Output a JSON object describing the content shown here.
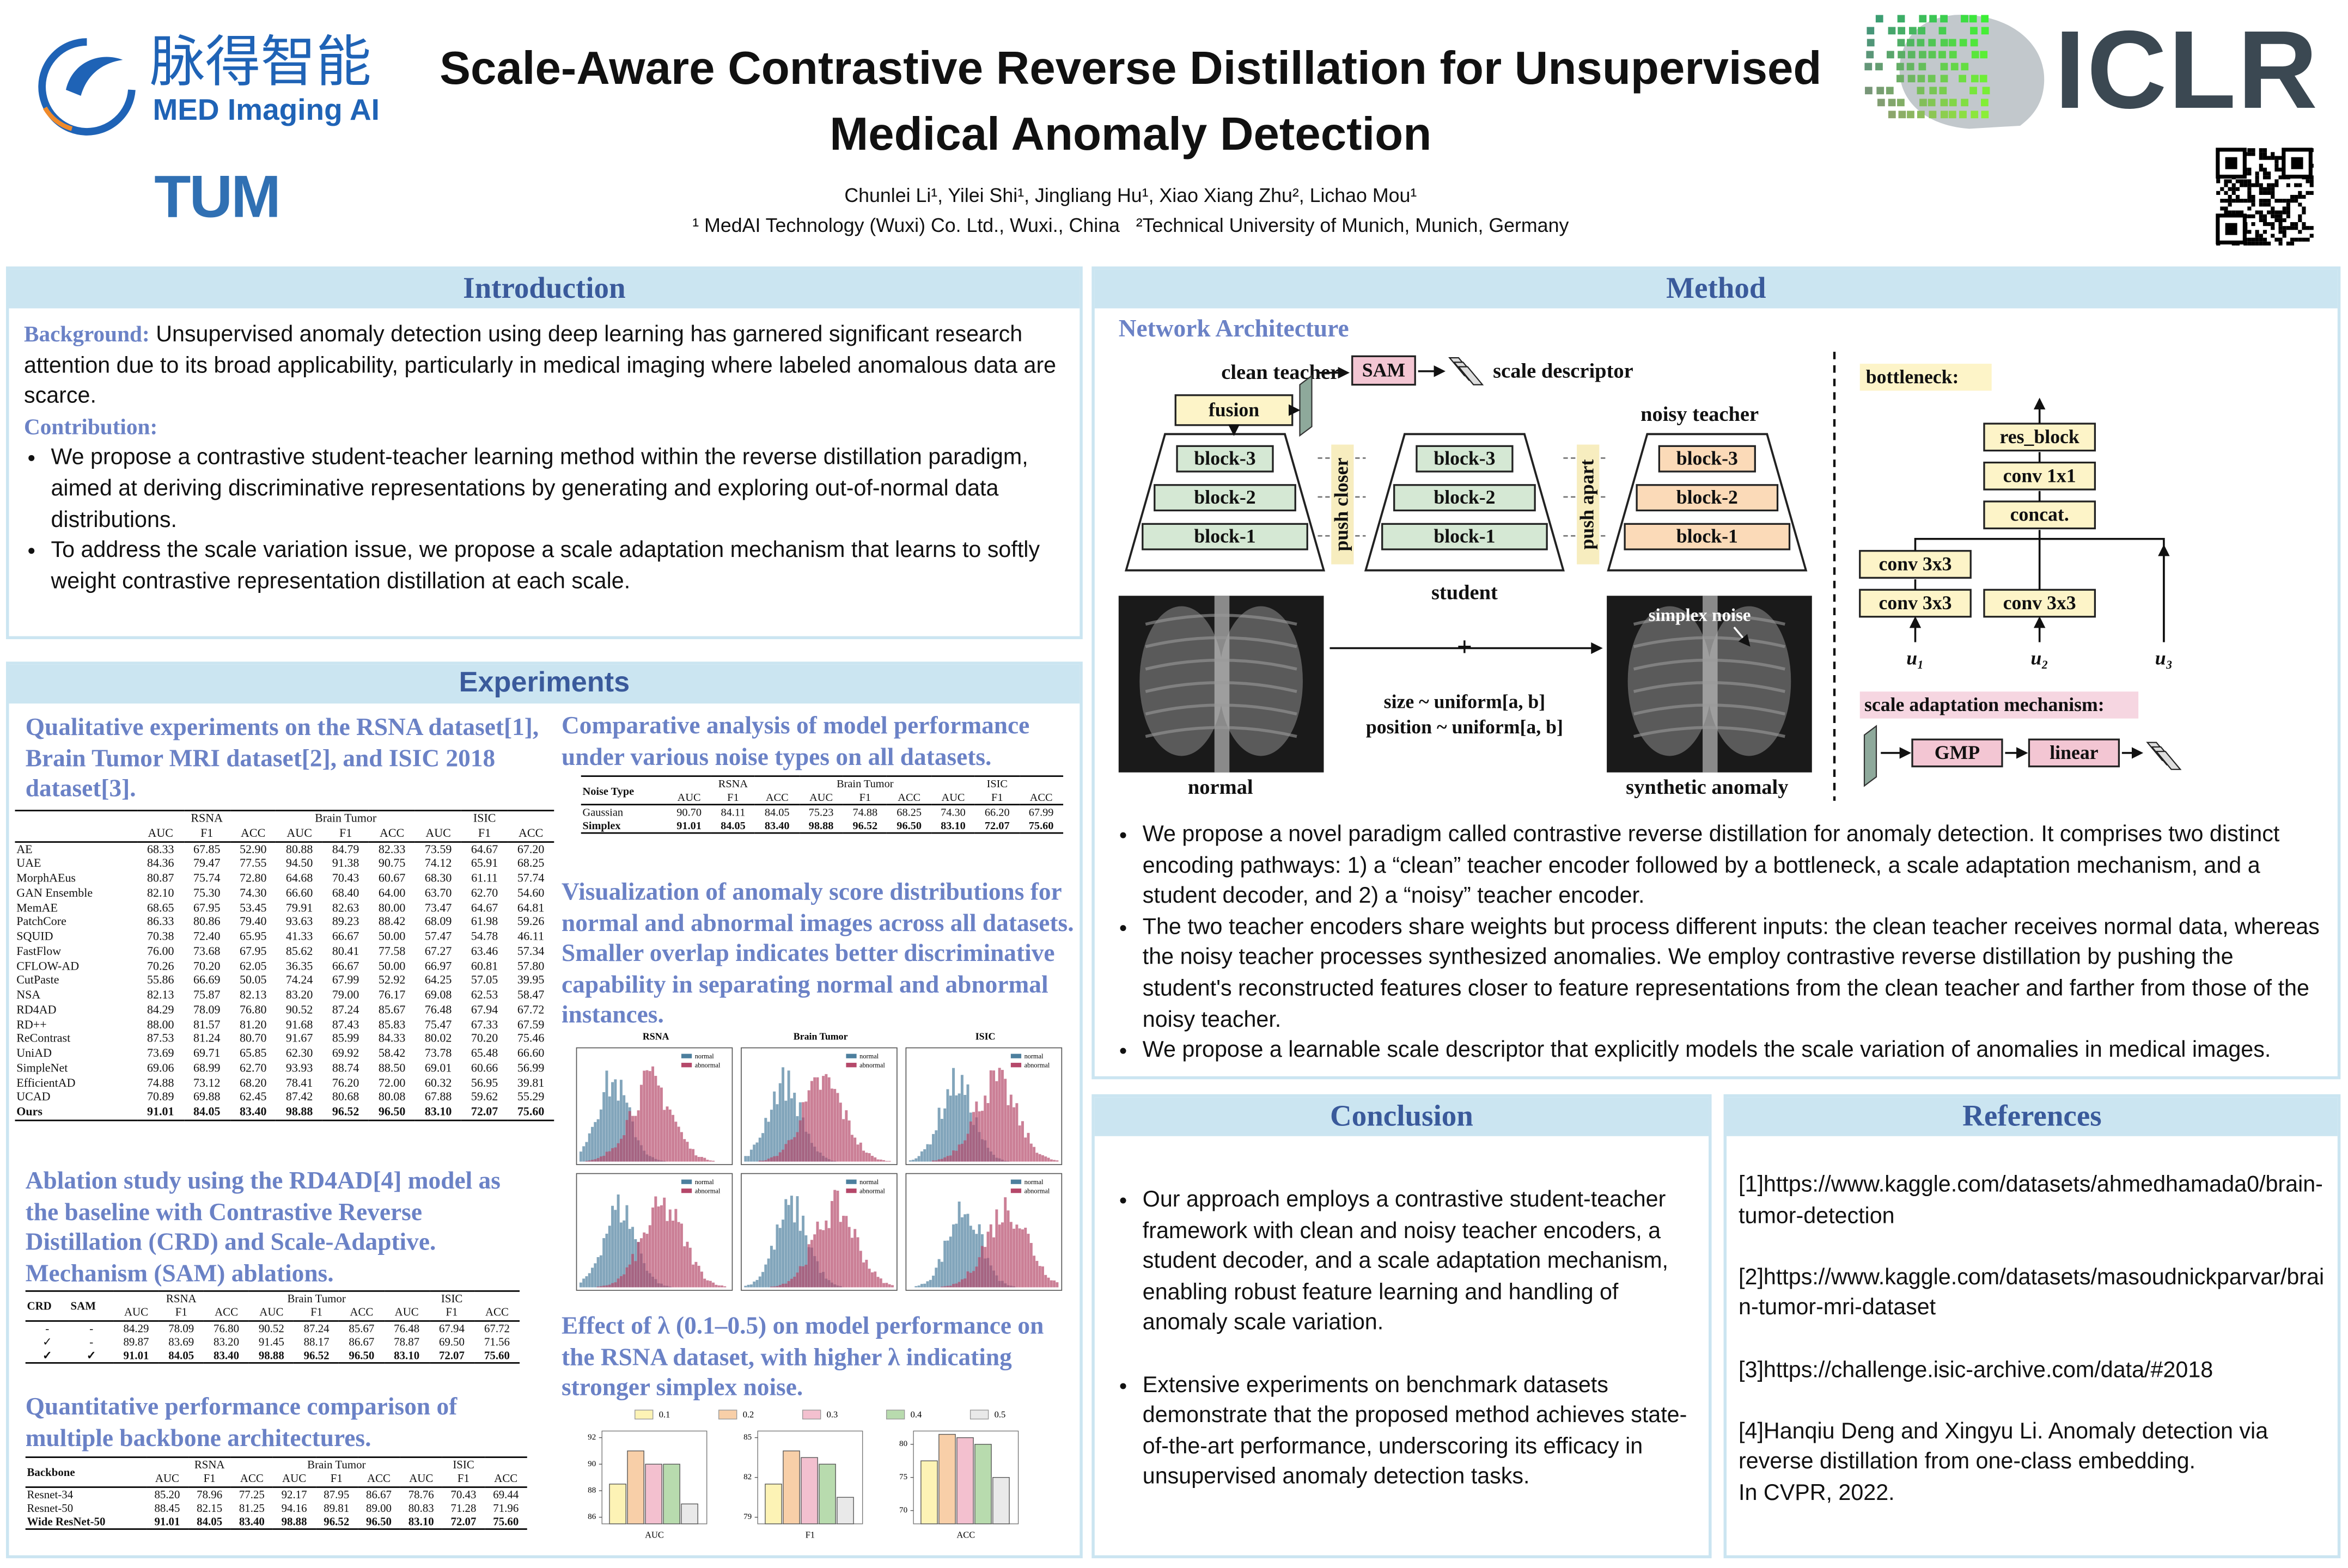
{
  "header": {
    "logo_cn": "脉得智能",
    "logo_en": "MED Imaging AI",
    "logo_tum": "TUM",
    "logo_iclr": "ICLR",
    "title_lines": [
      "Scale-Aware Contrastive Reverse Distillation for Unsupervised",
      "Medical Anomaly Detection"
    ],
    "authors": "Chunlei Li¹, Yilei Shi¹, Jingliang Hu¹, Xiao Xiang Zhu², Lichao Mou¹",
    "affiliations": [
      "¹ MedAI Technology (Wuxi) Co. Ltd., Wuxi., China",
      "²Technical University of Munich, Munich, Germany"
    ]
  },
  "introduction": {
    "title": "Introduction",
    "background_label": "Background:",
    "background_text": "Unsupervised anomaly detection using deep learning has garnered significant research attention due to its broad applicability, particularly in medical imaging where labeled anomalous data are scarce.",
    "contribution_label": "Contribution:",
    "bullets": [
      "We propose a contrastive student-teacher learning method within the reverse distillation paradigm, aimed at deriving discriminative representations by generating and exploring out-of-normal data distributions.",
      "To address the scale variation issue, we propose a scale adaptation mechanism that learns to softly weight contrastive representation distillation at each scale."
    ]
  },
  "method": {
    "title": "Method",
    "subtitle": "Network Architecture",
    "diagram": {
      "clean_teacher": "clean teacher",
      "fusion": "fusion",
      "sam": "SAM",
      "scale_descriptor": "scale descriptor",
      "noisy_teacher": "noisy teacher",
      "student": "student",
      "push_closer": "push closer",
      "push_apart": "push apart",
      "teacher_blocks": [
        "block-3",
        "block-2",
        "block-1"
      ],
      "student_blocks": [
        "block-3",
        "block-2",
        "block-1"
      ],
      "noisy_blocks": [
        "block-3",
        "block-2",
        "block-1"
      ],
      "normal": "normal",
      "synthetic_anomaly": "synthetic anomaly",
      "simplex_noise": "simplex noise",
      "plus": "+",
      "size_rule": "size ~ uniform[a, b]",
      "position_rule": "position ~ uniform[a, b]",
      "bottleneck": "bottleneck:",
      "res_block": "res_block",
      "conv1x1": "conv 1x1",
      "concat": "concat.",
      "conv3x3": [
        "conv 3x3",
        "conv 3x3",
        "conv 3x3"
      ],
      "inputs": [
        "u₁",
        "u₂",
        "u₃"
      ],
      "scale_adaptation": "scale adaptation mechanism:",
      "gmp": "GMP",
      "linear": "linear"
    },
    "bullets": [
      "We propose a novel paradigm called contrastive reverse distillation for anomaly detection. It comprises two distinct encoding pathways: 1) a “clean” teacher encoder followed by a bottleneck, a scale adaptation mechanism, and a student decoder, and 2) a “noisy” teacher encoder.",
      "The two teacher encoders share weights but process different inputs: the clean teacher receives normal data, whereas the noisy teacher processes synthesized anomalies.  We employ contrastive reverse distillation by pushing the student's reconstructed features closer to feature representations from the clean teacher and farther from those of the noisy teacher.",
      "We propose a learnable scale descriptor that explicitly models the scale variation of anomalies in medical images."
    ]
  },
  "experiments": {
    "title": "Experiments",
    "qualitative": {
      "heading": "Qualitative experiments on the RSNA dataset[1], Brain Tumor MRI dataset[2], and ISIC 2018 dataset[3].",
      "table": {
        "lead_headers": [],
        "groups": [
          "RSNA",
          "Brain Tumor",
          "ISIC"
        ],
        "metrics": [
          "AUC",
          "F1",
          "ACC"
        ],
        "rows": [
          [
            "AE",
            "68.33",
            "67.85",
            "52.90",
            "80.88",
            "84.79",
            "82.33",
            "73.59",
            "64.67",
            "67.20"
          ],
          [
            "UAE",
            "84.36",
            "79.47",
            "77.55",
            "94.50",
            "91.38",
            "90.75",
            "74.12",
            "65.91",
            "68.25"
          ],
          [
            "MorphAEus",
            "80.87",
            "75.74",
            "72.80",
            "64.68",
            "70.43",
            "60.67",
            "68.30",
            "61.11",
            "57.74"
          ],
          [
            "GAN Ensemble",
            "82.10",
            "75.30",
            "74.30",
            "66.60",
            "68.40",
            "64.00",
            "63.70",
            "62.70",
            "54.60"
          ],
          [
            "MemAE",
            "68.65",
            "67.95",
            "53.45",
            "79.91",
            "82.63",
            "80.00",
            "73.47",
            "64.67",
            "64.81"
          ],
          [
            "PatchCore",
            "86.33",
            "80.86",
            "79.40",
            "93.63",
            "89.23",
            "88.42",
            "68.09",
            "61.98",
            "59.26"
          ],
          [
            "SQUID",
            "70.38",
            "72.40",
            "65.95",
            "41.33",
            "66.67",
            "50.00",
            "57.47",
            "54.78",
            "46.11"
          ],
          [
            "FastFlow",
            "76.00",
            "73.68",
            "67.95",
            "85.62",
            "80.41",
            "77.58",
            "67.27",
            "63.46",
            "57.34"
          ],
          [
            "CFLOW-AD",
            "70.26",
            "70.20",
            "62.05",
            "36.35",
            "66.67",
            "50.00",
            "66.97",
            "60.81",
            "57.80"
          ],
          [
            "CutPaste",
            "55.86",
            "66.69",
            "50.05",
            "74.24",
            "67.99",
            "52.92",
            "64.25",
            "57.05",
            "39.95"
          ],
          [
            "NSA",
            "82.13",
            "75.87",
            "82.13",
            "83.20",
            "79.00",
            "76.17",
            "69.08",
            "62.53",
            "58.47"
          ],
          [
            "RD4AD",
            "84.29",
            "78.09",
            "76.80",
            "90.52",
            "87.24",
            "85.67",
            "76.48",
            "67.94",
            "67.72"
          ],
          [
            "RD++",
            "88.00",
            "81.57",
            "81.20",
            "91.68",
            "87.43",
            "85.83",
            "75.47",
            "67.33",
            "67.59"
          ],
          [
            "ReContrast",
            "87.53",
            "81.24",
            "80.70",
            "91.67",
            "85.99",
            "84.33",
            "80.02",
            "70.20",
            "75.46"
          ],
          [
            "UniAD",
            "73.69",
            "69.71",
            "65.85",
            "62.30",
            "69.92",
            "58.42",
            "73.78",
            "65.48",
            "66.60"
          ],
          [
            "SimpleNet",
            "69.06",
            "68.99",
            "62.70",
            "93.93",
            "88.74",
            "88.50",
            "69.01",
            "60.66",
            "56.99"
          ],
          [
            "EfficientAD",
            "74.88",
            "73.12",
            "68.20",
            "78.41",
            "76.20",
            "72.00",
            "60.32",
            "56.95",
            "39.81"
          ],
          [
            "UCAD",
            "70.89",
            "69.88",
            "62.45",
            "87.42",
            "80.68",
            "80.08",
            "67.88",
            "59.62",
            "55.29"
          ],
          [
            "Ours",
            "91.01",
            "84.05",
            "83.40",
            "98.88",
            "96.52",
            "96.50",
            "83.10",
            "72.07",
            "75.60"
          ]
        ]
      }
    },
    "noise": {
      "heading": "Comparative analysis of model performance under various noise types on all datasets.",
      "table": {
        "lead_headers": [
          "Noise Type"
        ],
        "groups": [
          "RSNA",
          "Brain Tumor",
          "ISIC"
        ],
        "metrics": [
          "AUC",
          "F1",
          "ACC"
        ],
        "rows": [
          [
            "Gaussian",
            "90.70",
            "84.11",
            "84.05",
            "75.23",
            "74.88",
            "68.25",
            "74.30",
            "66.20",
            "67.99"
          ],
          [
            "Simplex",
            "91.01",
            "84.05",
            "83.40",
            "98.88",
            "96.52",
            "96.50",
            "83.10",
            "72.07",
            "75.60"
          ]
        ]
      }
    },
    "visualization": {
      "heading": "Visualization of anomaly score distributions for normal and abnormal images across all datasets. Smaller overlap indicates better discriminative capability in separating normal and abnormal instances.",
      "datasets": [
        "RSNA",
        "Brain Tumor",
        "ISIC"
      ],
      "legend": [
        "normal",
        "abnormal"
      ]
    },
    "lambda": {
      "heading": "Effect of λ (0.1–0.5) on model performance on the RSNA dataset, with higher λ indicating stronger simplex noise.",
      "chart": {
        "type": "bar",
        "categories": [
          "AUC",
          "F1",
          "ACC"
        ],
        "panels": [
          {
            "ylim": [
              85.5,
              92.5
            ],
            "yticks": [
              86,
              88,
              90,
              92
            ]
          },
          {
            "ylim": [
              78.5,
              85.5
            ],
            "yticks": [
              79,
              82,
              85
            ]
          },
          {
            "ylim": [
              68,
              82
            ],
            "yticks": [
              70,
              75,
              80
            ]
          }
        ],
        "series": [
          {
            "name": "0.1",
            "color": "#fdf3b5",
            "values": [
              88.5,
              81.5,
              77.5
            ]
          },
          {
            "name": "0.2",
            "color": "#f8cfa8",
            "values": [
              91.0,
              84.0,
              81.5
            ]
          },
          {
            "name": "0.3",
            "color": "#f3c0cf",
            "values": [
              90.0,
              83.5,
              81.0
            ]
          },
          {
            "name": "0.4",
            "color": "#b8dbae",
            "values": [
              90.0,
              83.0,
              80.0
            ]
          },
          {
            "name": "0.5",
            "color": "#e9e9e9",
            "values": [
              87.0,
              80.5,
              75.0
            ]
          }
        ]
      }
    },
    "ablation": {
      "heading": "Ablation study using the RD4AD[4] model as the baseline with Contrastive Reverse Distillation (CRD) and Scale-Adaptive. Mechanism (SAM) ablations.",
      "table": {
        "lead_headers": [
          "CRD",
          "SAM"
        ],
        "groups": [
          "RSNA",
          "Brain Tumor",
          "ISIC"
        ],
        "metrics": [
          "AUC",
          "F1",
          "ACC"
        ],
        "rows": [
          [
            "-",
            "-",
            "84.29",
            "78.09",
            "76.80",
            "90.52",
            "87.24",
            "85.67",
            "76.48",
            "67.94",
            "67.72"
          ],
          [
            "✓",
            "-",
            "89.87",
            "83.69",
            "83.20",
            "91.45",
            "88.17",
            "86.67",
            "78.87",
            "69.50",
            "71.56"
          ],
          [
            "✓",
            "✓",
            "91.01",
            "84.05",
            "83.40",
            "98.88",
            "96.52",
            "96.50",
            "83.10",
            "72.07",
            "75.60"
          ]
        ]
      }
    },
    "backbone": {
      "heading": "Quantitative performance comparison of multiple backbone architectures.",
      "table": {
        "lead_headers": [
          "Backbone"
        ],
        "groups": [
          "RSNA",
          "Brain Tumor",
          "ISIC"
        ],
        "metrics": [
          "AUC",
          "F1",
          "ACC"
        ],
        "rows": [
          [
            "Resnet-34",
            "85.20",
            "78.96",
            "77.25",
            "92.17",
            "87.95",
            "86.67",
            "78.76",
            "70.43",
            "69.44"
          ],
          [
            "Resnet-50",
            "88.45",
            "82.15",
            "81.25",
            "94.16",
            "89.81",
            "89.00",
            "80.83",
            "71.28",
            "71.96"
          ],
          [
            "Wide ResNet-50",
            "91.01",
            "84.05",
            "83.40",
            "98.88",
            "96.52",
            "96.50",
            "83.10",
            "72.07",
            "75.60"
          ]
        ]
      }
    }
  },
  "conclusion": {
    "title": "Conclusion",
    "bullets": [
      "Our approach employs a contrastive student-teacher framework with clean and noisy teacher encoders, a student decoder, and a scale adaptation mechanism, enabling robust feature learning and handling of anomaly scale variation.",
      " Extensive experiments on benchmark datasets demonstrate that the proposed method achieves state-of-the-art performance, underscoring its efficacy in unsupervised anomaly detection tasks."
    ]
  },
  "references": {
    "title": "References",
    "items": [
      "[1]https://www.kaggle.com/datasets/ahmedhamada0/brain-tumor-detection",
      "[2]https://www.kaggle.com/datasets/masoudnickparvar/brain-tumor-mri-dataset",
      "[3]https://challenge.isic-archive.com/data/#2018",
      "[4]Hanqiu Deng and Xingyu Li. Anomaly detection via reverse distillation from one-class embedding."
    ],
    "venue": "In CVPR, 2022."
  }
}
